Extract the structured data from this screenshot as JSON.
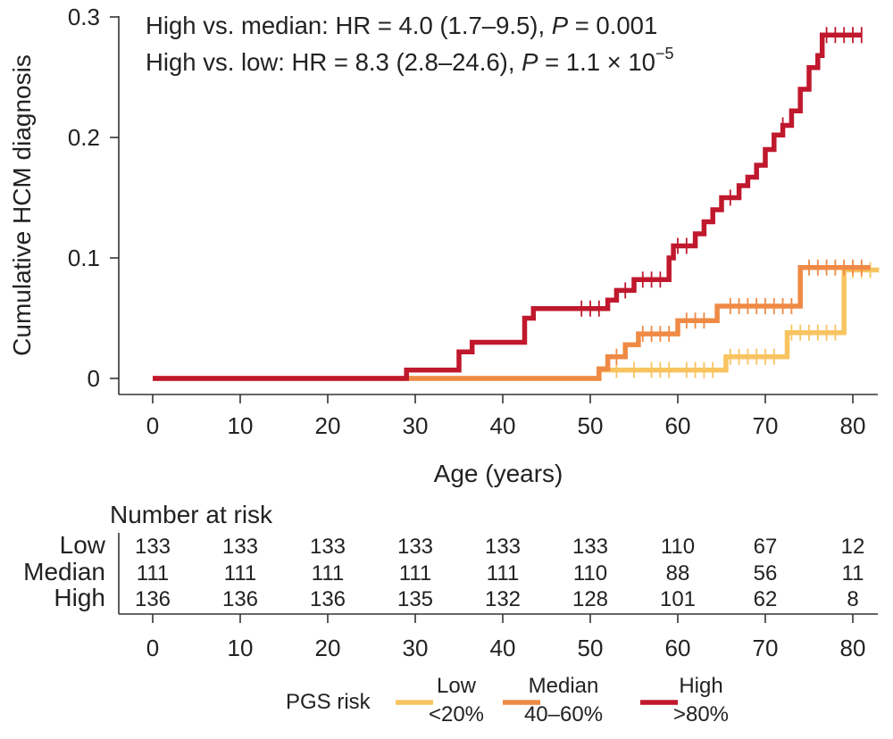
{
  "chart_data": {
    "type": "line",
    "subtype": "kaplan-meier-cumulative-incidence",
    "ylabel": "Cumulative HCM diagnosis",
    "xlabel": "Age (years)",
    "xlim": [
      0,
      83
    ],
    "ylim": [
      0,
      0.3
    ],
    "x_ticks": [
      0,
      10,
      20,
      30,
      40,
      50,
      60,
      70,
      80
    ],
    "y_ticks": [
      {
        "value": 0,
        "label": "0"
      },
      {
        "value": 0.1,
        "label": "0.1"
      },
      {
        "value": 0.2,
        "label": "0.2"
      },
      {
        "value": 0.3,
        "label": "0.3"
      }
    ],
    "annotations": {
      "line1": {
        "prefix": "High vs. median: HR = 4.0 (1.7–9.5), ",
        "p": "P",
        "rest": " = 0.001"
      },
      "line2": {
        "prefix": "High vs. low: HR = 8.3 (2.8–24.6), ",
        "p": "P",
        "rest": " = 1.1 × 10",
        "exponent": "−5"
      }
    },
    "series": [
      {
        "name": "Low",
        "legend_line1": "Low",
        "legend_line2": "<20%",
        "color": "#F8C460",
        "steps": [
          [
            0,
            0
          ],
          [
            51,
            0
          ],
          [
            51,
            0.007
          ],
          [
            65.5,
            0.007
          ],
          [
            65.5,
            0.018
          ],
          [
            72.5,
            0.018
          ],
          [
            72.5,
            0.038
          ],
          [
            79,
            0.038
          ],
          [
            79,
            0.09
          ],
          [
            83,
            0.09
          ]
        ],
        "censors": [
          53,
          55,
          57,
          58,
          59,
          61,
          62,
          63,
          64,
          66,
          67,
          68,
          69,
          70,
          71,
          73,
          74,
          75,
          76,
          77,
          78,
          80,
          81,
          82
        ]
      },
      {
        "name": "Median",
        "legend_line1": "Median",
        "legend_line2": "40–60%",
        "color": "#EE8A45",
        "steps": [
          [
            0,
            0
          ],
          [
            51,
            0
          ],
          [
            51,
            0.008
          ],
          [
            52,
            0.008
          ],
          [
            52,
            0.018
          ],
          [
            54,
            0.018
          ],
          [
            54,
            0.028
          ],
          [
            55.5,
            0.028
          ],
          [
            55.5,
            0.037
          ],
          [
            60,
            0.037
          ],
          [
            60,
            0.048
          ],
          [
            64.5,
            0.048
          ],
          [
            64.5,
            0.06
          ],
          [
            74,
            0.06
          ],
          [
            74,
            0.092
          ],
          [
            82,
            0.092
          ]
        ],
        "censors": [
          53,
          56,
          57,
          58,
          59,
          61,
          62,
          63,
          66,
          67,
          68,
          69,
          70,
          71,
          72,
          73,
          75,
          76,
          77,
          78,
          79,
          80,
          81
        ]
      },
      {
        "name": "High",
        "legend_line1": "High",
        "legend_line2": ">80%",
        "color": "#C0182D",
        "steps": [
          [
            0,
            0
          ],
          [
            29,
            0
          ],
          [
            29,
            0.007
          ],
          [
            35,
            0.007
          ],
          [
            35,
            0.022
          ],
          [
            36.5,
            0.022
          ],
          [
            36.5,
            0.03
          ],
          [
            42.5,
            0.03
          ],
          [
            42.5,
            0.05
          ],
          [
            43.5,
            0.05
          ],
          [
            43.5,
            0.058
          ],
          [
            52,
            0.058
          ],
          [
            52,
            0.065
          ],
          [
            53,
            0.065
          ],
          [
            53,
            0.073
          ],
          [
            55,
            0.073
          ],
          [
            55,
            0.082
          ],
          [
            59,
            0.082
          ],
          [
            59,
            0.1
          ],
          [
            59.5,
            0.1
          ],
          [
            59.5,
            0.11
          ],
          [
            62,
            0.11
          ],
          [
            62,
            0.12
          ],
          [
            63,
            0.12
          ],
          [
            63,
            0.13
          ],
          [
            64,
            0.13
          ],
          [
            64,
            0.14
          ],
          [
            65,
            0.14
          ],
          [
            65,
            0.15
          ],
          [
            67,
            0.15
          ],
          [
            67,
            0.16
          ],
          [
            68,
            0.16
          ],
          [
            68,
            0.167
          ],
          [
            69,
            0.167
          ],
          [
            69,
            0.177
          ],
          [
            70,
            0.177
          ],
          [
            70,
            0.19
          ],
          [
            71,
            0.19
          ],
          [
            71,
            0.202
          ],
          [
            72,
            0.202
          ],
          [
            72,
            0.21
          ],
          [
            73,
            0.21
          ],
          [
            73,
            0.222
          ],
          [
            74,
            0.222
          ],
          [
            74,
            0.24
          ],
          [
            75,
            0.24
          ],
          [
            75,
            0.258
          ],
          [
            76,
            0.258
          ],
          [
            76,
            0.268
          ],
          [
            76.5,
            0.268
          ],
          [
            76.5,
            0.285
          ],
          [
            81,
            0.285
          ]
        ],
        "censors": [
          49,
          50,
          51,
          54,
          56,
          57,
          58,
          60,
          61,
          66,
          72,
          77,
          78,
          79,
          80,
          81
        ]
      }
    ],
    "risk_table": {
      "title": "Number at risk",
      "times": [
        0,
        10,
        20,
        30,
        40,
        50,
        60,
        70,
        80
      ],
      "rows": [
        {
          "label": "Low",
          "values": [
            133,
            133,
            133,
            133,
            133,
            133,
            110,
            67,
            12
          ]
        },
        {
          "label": "Median",
          "values": [
            111,
            111,
            111,
            111,
            111,
            110,
            88,
            56,
            11
          ]
        },
        {
          "label": "High",
          "values": [
            136,
            136,
            136,
            135,
            132,
            128,
            101,
            62,
            8
          ]
        }
      ]
    },
    "legend": {
      "title": "PGS risk",
      "placement": "bottom-center"
    }
  }
}
